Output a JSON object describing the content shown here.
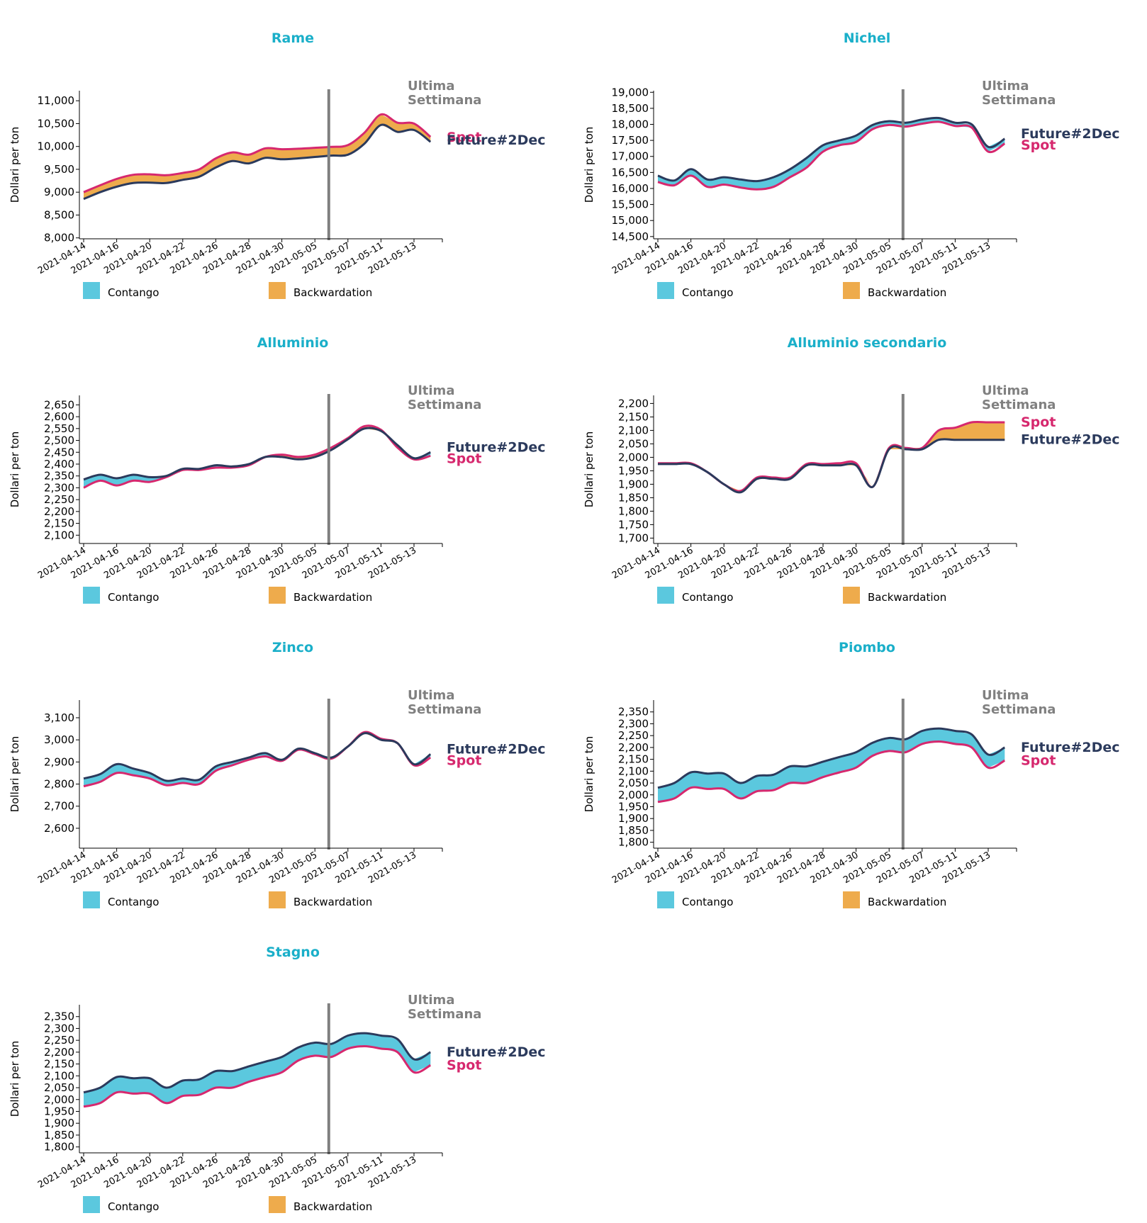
{
  "common": {
    "dates": [
      "2021-04-14",
      "2021-04-16",
      "2021-04-20",
      "2021-04-22",
      "2021-04-26",
      "2021-04-28",
      "2021-04-30",
      "2021-05-05",
      "2021-05-07",
      "2021-05-11",
      "2021-05-13"
    ],
    "ylabel": "Dollari per ton",
    "week_label_line1": "Ultima",
    "week_label_line2": "Settimana",
    "future_label": "Future#2Dec",
    "spot_label": "Spot",
    "legend_contango": "Contango",
    "legend_backwardation": "Backwardation",
    "colors": {
      "title": "#1aafc9",
      "future": "#2b3a5c",
      "spot": "#d6286e",
      "contango": "#5bc8de",
      "backwardation": "#eeab4c",
      "week_line": "#808080"
    }
  },
  "chart_data": [
    {
      "type": "area",
      "title": "Rame",
      "ylabel": "Dollari per ton",
      "yticks": [
        8000,
        8500,
        9000,
        9500,
        10000,
        10500,
        11000
      ],
      "ylim": [
        7980,
        11220
      ],
      "x": [
        0,
        0.5,
        1,
        1.5,
        2,
        2.5,
        3,
        3.5,
        4,
        4.5,
        5,
        5.5,
        6,
        6.5,
        7,
        7.5,
        8,
        8.5,
        9,
        9.5,
        10,
        10.5
      ],
      "series": [
        {
          "name": "Future#2Dec",
          "values": [
            8850,
            9000,
            9120,
            9200,
            9210,
            9200,
            9270,
            9340,
            9540,
            9680,
            9630,
            9750,
            9720,
            9740,
            9770,
            9800,
            9820,
            10060,
            10470,
            10320,
            10360,
            10100
          ]
        },
        {
          "name": "Spot",
          "values": [
            9000,
            9150,
            9290,
            9380,
            9390,
            9370,
            9420,
            9500,
            9740,
            9870,
            9820,
            9960,
            9940,
            9950,
            9970,
            9990,
            10030,
            10300,
            10700,
            10520,
            10500,
            10210
          ]
        }
      ]
    },
    {
      "type": "area",
      "title": "Nichel",
      "ylabel": "Dollari per ton",
      "yticks": [
        14500,
        15000,
        15500,
        16000,
        16500,
        17000,
        17500,
        18000,
        18500,
        19000
      ],
      "ylim": [
        14430,
        19050
      ],
      "x": [
        0,
        0.5,
        1,
        1.5,
        2,
        2.5,
        3,
        3.5,
        4,
        4.5,
        5,
        5.5,
        6,
        6.5,
        7,
        7.5,
        8,
        8.5,
        9,
        9.5,
        10,
        10.5
      ],
      "series": [
        {
          "name": "Future#2Dec",
          "values": [
            16400,
            16250,
            16600,
            16280,
            16350,
            16280,
            16230,
            16350,
            16600,
            16950,
            17350,
            17500,
            17650,
            17980,
            18100,
            18050,
            18150,
            18200,
            18050,
            18000,
            17300,
            17550
          ]
        },
        {
          "name": "Spot",
          "values": [
            16200,
            16100,
            16400,
            16050,
            16120,
            16030,
            15970,
            16050,
            16350,
            16650,
            17150,
            17350,
            17450,
            17850,
            17980,
            17930,
            18020,
            18080,
            17950,
            17900,
            17150,
            17400
          ]
        }
      ]
    },
    {
      "type": "area",
      "title": "Alluminio",
      "ylabel": "Dollari per ton",
      "yticks": [
        2100,
        2150,
        2200,
        2250,
        2300,
        2350,
        2400,
        2450,
        2500,
        2550,
        2600,
        2650
      ],
      "ylim": [
        2065,
        2690
      ],
      "x": [
        0,
        0.5,
        1,
        1.5,
        2,
        2.5,
        3,
        3.5,
        4,
        4.5,
        5,
        5.5,
        6,
        6.5,
        7,
        7.5,
        8,
        8.5,
        9,
        9.5,
        10,
        10.5
      ],
      "series": [
        {
          "name": "Future#2Dec",
          "values": [
            2335,
            2355,
            2340,
            2355,
            2345,
            2350,
            2380,
            2380,
            2395,
            2390,
            2400,
            2430,
            2430,
            2420,
            2430,
            2460,
            2505,
            2550,
            2540,
            2480,
            2425,
            2450
          ]
        },
        {
          "name": "Spot",
          "values": [
            2300,
            2330,
            2310,
            2330,
            2325,
            2345,
            2375,
            2375,
            2385,
            2385,
            2395,
            2430,
            2440,
            2430,
            2440,
            2470,
            2510,
            2560,
            2545,
            2470,
            2420,
            2435
          ]
        }
      ]
    },
    {
      "type": "area",
      "title": "Alluminio secondario",
      "ylabel": "Dollari per ton",
      "yticks": [
        1700,
        1750,
        1800,
        1850,
        1900,
        1950,
        2000,
        2050,
        2100,
        2150,
        2200
      ],
      "ylim": [
        1680,
        2230
      ],
      "x": [
        0,
        0.5,
        1,
        1.5,
        2,
        2.5,
        3,
        3.5,
        4,
        4.5,
        5,
        5.5,
        6,
        6.5,
        7,
        7.5,
        8,
        8.5,
        9,
        9.5,
        10,
        10.5
      ],
      "series": [
        {
          "name": "Future#2Dec",
          "values": [
            1975,
            1975,
            1975,
            1945,
            1900,
            1870,
            1920,
            1920,
            1920,
            1970,
            1970,
            1970,
            1970,
            1890,
            2030,
            2030,
            2030,
            2065,
            2065,
            2065,
            2065,
            2065
          ]
        },
        {
          "name": "Spot",
          "values": [
            1978,
            1978,
            1978,
            1945,
            1900,
            1875,
            1925,
            1925,
            1925,
            1975,
            1975,
            1978,
            1978,
            1890,
            2035,
            2035,
            2035,
            2100,
            2110,
            2130,
            2130,
            2130
          ]
        }
      ]
    },
    {
      "type": "area",
      "title": "Zinco",
      "ylabel": "Dollari per ton",
      "yticks": [
        2600,
        2700,
        2800,
        2900,
        3000,
        3100
      ],
      "ylim": [
        2510,
        3180
      ],
      "x": [
        0,
        0.5,
        1,
        1.5,
        2,
        2.5,
        3,
        3.5,
        4,
        4.5,
        5,
        5.5,
        6,
        6.5,
        7,
        7.5,
        8,
        8.5,
        9,
        9.5,
        10,
        10.5
      ],
      "series": [
        {
          "name": "Future#2Dec",
          "values": [
            2825,
            2845,
            2890,
            2870,
            2850,
            2815,
            2825,
            2820,
            2880,
            2900,
            2920,
            2940,
            2910,
            2960,
            2940,
            2920,
            2970,
            3030,
            3000,
            2985,
            2890,
            2935
          ]
        },
        {
          "name": "Spot",
          "values": [
            2790,
            2810,
            2850,
            2840,
            2825,
            2795,
            2805,
            2800,
            2860,
            2885,
            2910,
            2925,
            2905,
            2955,
            2935,
            2915,
            2970,
            3035,
            3005,
            2985,
            2885,
            2920
          ]
        }
      ]
    },
    {
      "type": "area",
      "title": "Piombo",
      "ylabel": "Dollari per ton",
      "yticks": [
        1800,
        1850,
        1900,
        1950,
        2000,
        2050,
        2100,
        2150,
        2200,
        2250,
        2300,
        2350
      ],
      "ylim": [
        1775,
        2400
      ],
      "x": [
        0,
        0.5,
        1,
        1.5,
        2,
        2.5,
        3,
        3.5,
        4,
        4.5,
        5,
        5.5,
        6,
        6.5,
        7,
        7.5,
        8,
        8.5,
        9,
        9.5,
        10,
        10.5
      ],
      "series": [
        {
          "name": "Future#2Dec",
          "values": [
            2030,
            2050,
            2095,
            2090,
            2090,
            2050,
            2080,
            2085,
            2120,
            2120,
            2140,
            2160,
            2180,
            2220,
            2240,
            2235,
            2270,
            2280,
            2270,
            2255,
            2170,
            2200
          ]
        },
        {
          "name": "Spot",
          "values": [
            1970,
            1985,
            2030,
            2025,
            2025,
            1985,
            2015,
            2020,
            2050,
            2050,
            2075,
            2095,
            2115,
            2165,
            2185,
            2180,
            2215,
            2225,
            2215,
            2200,
            2115,
            2145
          ]
        }
      ]
    },
    {
      "type": "area",
      "title": "Stagno",
      "ylabel": "Dollari per ton",
      "yticks": [
        1800,
        1850,
        1900,
        1950,
        2000,
        2050,
        2100,
        2150,
        2200,
        2250,
        2300,
        2350
      ],
      "ylim": [
        1775,
        2400
      ],
      "x": [
        0,
        0.5,
        1,
        1.5,
        2,
        2.5,
        3,
        3.5,
        4,
        4.5,
        5,
        5.5,
        6,
        6.5,
        7,
        7.5,
        8,
        8.5,
        9,
        9.5,
        10,
        10.5
      ],
      "series": [
        {
          "name": "Future#2Dec",
          "values": [
            2030,
            2050,
            2095,
            2090,
            2090,
            2050,
            2080,
            2085,
            2120,
            2120,
            2140,
            2160,
            2180,
            2220,
            2240,
            2235,
            2270,
            2280,
            2270,
            2255,
            2170,
            2200
          ]
        },
        {
          "name": "Spot",
          "values": [
            1970,
            1985,
            2030,
            2025,
            2025,
            1985,
            2015,
            2020,
            2050,
            2050,
            2075,
            2095,
            2115,
            2165,
            2185,
            2180,
            2215,
            2225,
            2215,
            2200,
            2115,
            2145
          ]
        }
      ]
    }
  ]
}
